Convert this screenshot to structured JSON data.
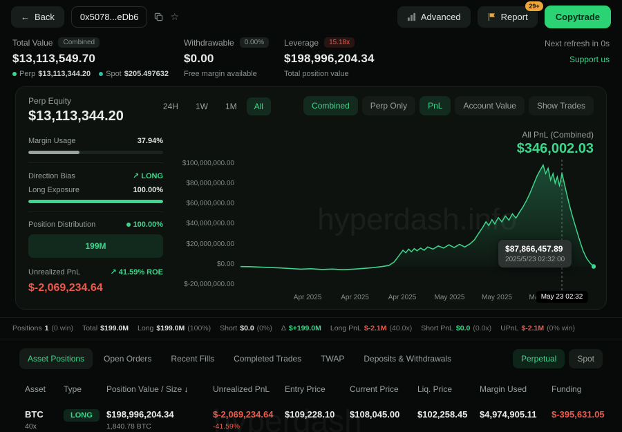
{
  "header": {
    "back_label": "Back",
    "address": "0x5078...eDb6",
    "advanced_label": "Advanced",
    "report_label": "Report",
    "report_badge": "29+",
    "copytrade_label": "Copytrade"
  },
  "stats": {
    "total_value": {
      "label": "Total Value",
      "badge": "Combined",
      "value": "$13,113,549.70",
      "perp_label": "Perp",
      "perp_value": "$13,113,344.20",
      "spot_label": "Spot",
      "spot_value": "$205.497632"
    },
    "withdrawable": {
      "label": "Withdrawable",
      "badge": "0.00%",
      "value": "$0.00",
      "sub": "Free margin available"
    },
    "leverage": {
      "label": "Leverage",
      "badge": "15.18x",
      "value": "$198,996,204.34",
      "sub": "Total position value"
    },
    "refresh_text": "Next refresh in 0s",
    "support_link": "Support us"
  },
  "panel": {
    "perp_equity_label": "Perp Equity",
    "perp_equity_value": "$13,113,344.20",
    "time_tabs": {
      "items": [
        "24H",
        "1W",
        "1M",
        "All"
      ],
      "active": "All"
    },
    "view_tabs": {
      "items": [
        "Combined",
        "Perp Only",
        "PnL",
        "Account Value",
        "Show Trades"
      ],
      "active": [
        "Combined",
        "PnL"
      ]
    },
    "margin_usage_label": "Margin Usage",
    "margin_usage_value": "37.94%",
    "margin_usage_pct": 37.94,
    "direction_bias_label": "Direction Bias",
    "direction_bias_value": "LONG",
    "long_exposure_label": "Long Exposure",
    "long_exposure_value": "100.00%",
    "long_exposure_pct": 100,
    "position_distribution_label": "Position Distribution",
    "position_distribution_value": "100.00%",
    "distribution_box_value": "199M",
    "unrealized_pnl_label": "Unrealized PnL",
    "roe_value": "41.59% ROE",
    "unrealized_pnl_value": "$-2,069,234.64",
    "all_pnl_label": "All PnL (Combined)",
    "all_pnl_value": "$346,002.03"
  },
  "chart_data": {
    "type": "area",
    "title": "All PnL (Combined)",
    "watermark": "hyperdash.info",
    "series_unit": "millions USD",
    "ymin": -20,
    "ymax": 100,
    "y_labels": [
      "$100,000,000.00",
      "$80,000,000.00",
      "$60,000,000.00",
      "$40,000,000.00",
      "$20,000,000.00",
      "$0.00",
      "$-20,000,000.00"
    ],
    "x_labels": [
      "Apr 2025",
      "Apr 2025",
      "Apr 2025",
      "May 2025",
      "May 2025",
      "May 2025"
    ],
    "hover_x": 0.91,
    "hover_axis_label": "May 23 02:32",
    "tooltip": {
      "value": "$87,866,457.89",
      "time": "2025/5/23 02:32:00"
    },
    "series": [
      [
        0.0,
        0.2
      ],
      [
        0.025,
        0.1
      ],
      [
        0.05,
        -0.2
      ],
      [
        0.08,
        -0.6
      ],
      [
        0.11,
        -1.0
      ],
      [
        0.14,
        -1.6
      ],
      [
        0.17,
        -2.2
      ],
      [
        0.2,
        -1.8
      ],
      [
        0.23,
        -2.5
      ],
      [
        0.26,
        -2.1
      ],
      [
        0.29,
        -2.7
      ],
      [
        0.32,
        -2.2
      ],
      [
        0.35,
        -1.5
      ],
      [
        0.375,
        -0.8
      ],
      [
        0.4,
        0.2
      ],
      [
        0.42,
        1.2
      ],
      [
        0.435,
        4.5
      ],
      [
        0.45,
        11
      ],
      [
        0.46,
        15.5
      ],
      [
        0.468,
        13
      ],
      [
        0.476,
        16.5
      ],
      [
        0.484,
        14
      ],
      [
        0.492,
        17
      ],
      [
        0.5,
        15
      ],
      [
        0.51,
        17.5
      ],
      [
        0.52,
        15.5
      ],
      [
        0.53,
        18.5
      ],
      [
        0.545,
        16.5
      ],
      [
        0.56,
        19.5
      ],
      [
        0.575,
        17.5
      ],
      [
        0.59,
        20.5
      ],
      [
        0.605,
        18
      ],
      [
        0.62,
        21
      ],
      [
        0.635,
        18.5
      ],
      [
        0.65,
        21.5
      ],
      [
        0.662,
        25
      ],
      [
        0.674,
        31
      ],
      [
        0.686,
        37
      ],
      [
        0.695,
        42
      ],
      [
        0.703,
        38.5
      ],
      [
        0.712,
        44
      ],
      [
        0.72,
        40
      ],
      [
        0.73,
        46
      ],
      [
        0.74,
        42
      ],
      [
        0.75,
        47.5
      ],
      [
        0.76,
        43.5
      ],
      [
        0.77,
        49.5
      ],
      [
        0.78,
        45.5
      ],
      [
        0.79,
        51
      ],
      [
        0.8,
        56
      ],
      [
        0.81,
        62
      ],
      [
        0.82,
        69
      ],
      [
        0.83,
        77
      ],
      [
        0.84,
        85
      ],
      [
        0.85,
        91
      ],
      [
        0.857,
        95
      ],
      [
        0.864,
        87
      ],
      [
        0.871,
        92
      ],
      [
        0.878,
        81
      ],
      [
        0.885,
        87
      ],
      [
        0.891,
        78
      ],
      [
        0.897,
        84
      ],
      [
        0.903,
        76
      ],
      [
        0.908,
        83
      ],
      [
        0.91,
        87.87
      ],
      [
        0.916,
        79
      ],
      [
        0.923,
        69
      ],
      [
        0.931,
        58
      ],
      [
        0.94,
        47
      ],
      [
        0.95,
        36
      ],
      [
        0.96,
        25
      ],
      [
        0.97,
        15
      ],
      [
        0.98,
        8
      ],
      [
        0.99,
        3.5
      ],
      [
        1.0,
        0.35
      ]
    ]
  },
  "summary": [
    {
      "label": "Positions",
      "value": "1",
      "extra": "(0 win)",
      "tone": "neutral"
    },
    {
      "label": "Total",
      "value": "$199.0M",
      "extra": "",
      "tone": "neutral"
    },
    {
      "label": "Long",
      "value": "$199.0M",
      "extra": "(100%)",
      "tone": "neutral"
    },
    {
      "label": "Short",
      "value": "$0.0",
      "extra": "(0%)",
      "tone": "neutral"
    },
    {
      "label": "Δ",
      "value": "$+199.0M",
      "extra": "",
      "tone": "pos"
    },
    {
      "label": "Long PnL",
      "value": "$-2.1M",
      "extra": "(40.0x)",
      "tone": "neg"
    },
    {
      "label": "Short PnL",
      "value": "$0.0",
      "extra": "(0.0x)",
      "tone": "pos"
    },
    {
      "label": "UPnL",
      "value": "$-2.1M",
      "extra": "(0% win)",
      "tone": "neg"
    }
  ],
  "lower": {
    "tabs": {
      "items": [
        "Asset Positions",
        "Open Orders",
        "Recent Fills",
        "Completed Trades",
        "TWAP",
        "Deposits & Withdrawals"
      ],
      "active": "Asset Positions"
    },
    "side_tabs": {
      "items": [
        "Perpetual",
        "Spot"
      ],
      "active": "Perpetual"
    },
    "table_watermark": "hyperdash"
  },
  "table": {
    "headers": [
      {
        "label": "Asset"
      },
      {
        "label": "Type"
      },
      {
        "label": "Position Value / Size",
        "sort": true
      },
      {
        "label": "Unrealized PnL"
      },
      {
        "label": "Entry Price"
      },
      {
        "label": "Current Price"
      },
      {
        "label": "Liq. Price"
      },
      {
        "label": "Margin Used"
      },
      {
        "label": "Funding"
      }
    ],
    "rows": [
      {
        "cells": [
          {
            "main": "BTC",
            "sub": "40x"
          },
          {
            "badge": "LONG"
          },
          {
            "main": "$198,996,204.34",
            "sub": "1,840.78 BTC"
          },
          {
            "main": "$-2,069,234.64",
            "sub": "-41.59%",
            "tone": "neg",
            "sub_tone": "neg"
          },
          {
            "main": "$109,228.10"
          },
          {
            "main": "$108,045.00"
          },
          {
            "main": "$102,258.45"
          },
          {
            "main": "$4,974,905.11"
          },
          {
            "main": "$-395,631.05",
            "tone": "neg"
          }
        ]
      }
    ]
  }
}
